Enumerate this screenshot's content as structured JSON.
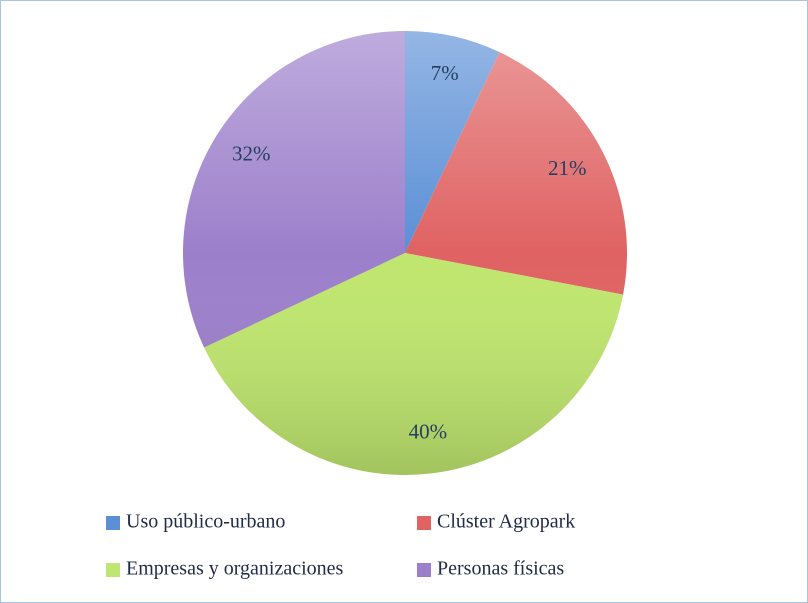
{
  "chart_data": {
    "type": "pie",
    "labels": [
      "Uso público-urbano",
      "Clúster Agropark",
      "Empresas y organizaciones",
      "Personas físicas"
    ],
    "values": [
      7,
      21,
      40,
      32
    ],
    "value_labels": [
      "7%",
      "21%",
      "40%",
      "32%"
    ],
    "colors": [
      "#5b8fd6",
      "#e06262",
      "#bfe66e",
      "#9c7fcb"
    ],
    "legend": "bottom"
  }
}
